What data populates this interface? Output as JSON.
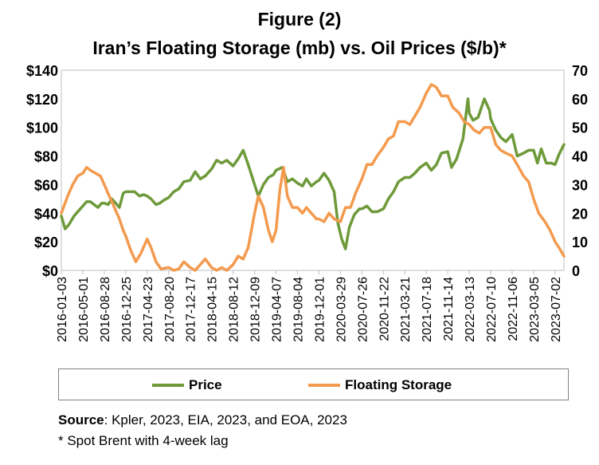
{
  "title_line1": "Figure (2)",
  "title_line2": "Iran’s Floating Storage (mb) vs. Oil Prices ($/b)*",
  "source_label": "Source",
  "source_text": ": Kpler, 2023, EIA, 2023, and EOA, 2023",
  "note": "* Spot Brent with 4-week lag",
  "chart_data": {
    "type": "line",
    "grid": false,
    "legend_position": "bottom",
    "y_left": {
      "ticks": [
        "$0",
        "$20",
        "$40",
        "$60",
        "$80",
        "$100",
        "$120",
        "$140"
      ],
      "range": [
        0,
        140
      ]
    },
    "y_right": {
      "ticks": [
        "0",
        "10",
        "20",
        "30",
        "40",
        "50",
        "60",
        "70"
      ],
      "range": [
        0,
        70
      ]
    },
    "x_ticks": [
      "2016-01-03",
      "2016-05-01",
      "2016-08-28",
      "2016-12-25",
      "2017-04-23",
      "2017-08-20",
      "2017-12-17",
      "2018-04-15",
      "2018-08-12",
      "2018-12-09",
      "2019-04-07",
      "2019-08-04",
      "2019-12-01",
      "2020-03-29",
      "2020-07-26",
      "2020-11-22",
      "2021-03-21",
      "2021-07-18",
      "2021-11-14",
      "2022-03-13",
      "2022-07-10",
      "2022-11-06",
      "2023-03-05",
      "2023-07-02"
    ],
    "x_range": [
      "2016-01-03",
      "2023-08-20"
    ],
    "series": [
      {
        "name": "Price",
        "axis": "left",
        "color": "#6e9a3a",
        "points": [
          [
            "2016-01-03",
            38
          ],
          [
            "2016-01-24",
            29
          ],
          [
            "2016-02-14",
            32
          ],
          [
            "2016-03-13",
            38
          ],
          [
            "2016-04-10",
            42
          ],
          [
            "2016-05-01",
            45
          ],
          [
            "2016-05-22",
            48
          ],
          [
            "2016-06-12",
            48
          ],
          [
            "2016-07-03",
            46
          ],
          [
            "2016-07-24",
            44
          ],
          [
            "2016-08-14",
            47
          ],
          [
            "2016-08-28",
            47
          ],
          [
            "2016-09-18",
            46
          ],
          [
            "2016-10-09",
            50
          ],
          [
            "2016-10-30",
            47
          ],
          [
            "2016-11-20",
            44
          ],
          [
            "2016-12-11",
            54
          ],
          [
            "2016-12-25",
            55
          ],
          [
            "2017-01-15",
            55
          ],
          [
            "2017-02-12",
            55
          ],
          [
            "2017-03-12",
            52
          ],
          [
            "2017-04-02",
            53
          ],
          [
            "2017-04-23",
            52
          ],
          [
            "2017-05-14",
            50
          ],
          [
            "2017-06-11",
            46
          ],
          [
            "2017-07-02",
            47
          ],
          [
            "2017-07-23",
            49
          ],
          [
            "2017-08-20",
            51
          ],
          [
            "2017-09-17",
            55
          ],
          [
            "2017-10-15",
            57
          ],
          [
            "2017-11-12",
            62
          ],
          [
            "2017-12-17",
            63
          ],
          [
            "2018-01-14",
            69
          ],
          [
            "2018-02-11",
            64
          ],
          [
            "2018-03-11",
            66
          ],
          [
            "2018-04-15",
            71
          ],
          [
            "2018-05-13",
            77
          ],
          [
            "2018-06-10",
            75
          ],
          [
            "2018-07-08",
            77
          ],
          [
            "2018-08-12",
            73
          ],
          [
            "2018-09-09",
            78
          ],
          [
            "2018-10-07",
            84
          ],
          [
            "2018-11-04",
            74
          ],
          [
            "2018-12-09",
            60
          ],
          [
            "2018-12-30",
            52
          ],
          [
            "2019-01-27",
            60
          ],
          [
            "2019-02-24",
            65
          ],
          [
            "2019-03-24",
            67
          ],
          [
            "2019-04-07",
            70
          ],
          [
            "2019-05-12",
            72
          ],
          [
            "2019-06-09",
            62
          ],
          [
            "2019-07-07",
            64
          ],
          [
            "2019-08-04",
            61
          ],
          [
            "2019-09-01",
            59
          ],
          [
            "2019-09-22",
            64
          ],
          [
            "2019-10-20",
            59
          ],
          [
            "2019-11-17",
            62
          ],
          [
            "2019-12-01",
            63
          ],
          [
            "2019-12-29",
            68
          ],
          [
            "2020-01-26",
            63
          ],
          [
            "2020-02-23",
            55
          ],
          [
            "2020-03-15",
            33
          ],
          [
            "2020-04-05",
            22
          ],
          [
            "2020-04-26",
            15
          ],
          [
            "2020-05-17",
            30
          ],
          [
            "2020-06-14",
            39
          ],
          [
            "2020-07-12",
            43
          ],
          [
            "2020-07-26",
            43
          ],
          [
            "2020-08-23",
            45
          ],
          [
            "2020-09-20",
            41
          ],
          [
            "2020-10-18",
            41
          ],
          [
            "2020-11-22",
            43
          ],
          [
            "2020-12-20",
            50
          ],
          [
            "2021-01-17",
            55
          ],
          [
            "2021-02-14",
            62
          ],
          [
            "2021-03-21",
            65
          ],
          [
            "2021-04-18",
            65
          ],
          [
            "2021-05-16",
            68
          ],
          [
            "2021-06-13",
            72
          ],
          [
            "2021-07-18",
            75
          ],
          [
            "2021-08-15",
            70
          ],
          [
            "2021-09-12",
            74
          ],
          [
            "2021-10-10",
            82
          ],
          [
            "2021-11-14",
            83
          ],
          [
            "2021-12-05",
            72
          ],
          [
            "2022-01-02",
            78
          ],
          [
            "2022-02-06",
            92
          ],
          [
            "2022-03-06",
            120
          ],
          [
            "2022-03-13",
            110
          ],
          [
            "2022-04-03",
            105
          ],
          [
            "2022-05-01",
            107
          ],
          [
            "2022-06-05",
            120
          ],
          [
            "2022-07-03",
            112
          ],
          [
            "2022-07-10",
            106
          ],
          [
            "2022-08-07",
            98
          ],
          [
            "2022-09-04",
            93
          ],
          [
            "2022-10-02",
            90
          ],
          [
            "2022-11-06",
            95
          ],
          [
            "2022-12-04",
            80
          ],
          [
            "2023-01-08",
            82
          ],
          [
            "2023-02-05",
            84
          ],
          [
            "2023-03-05",
            84
          ],
          [
            "2023-03-26",
            75
          ],
          [
            "2023-04-16",
            85
          ],
          [
            "2023-05-14",
            75
          ],
          [
            "2023-06-11",
            75
          ],
          [
            "2023-07-02",
            74
          ],
          [
            "2023-07-23",
            81
          ],
          [
            "2023-08-20",
            88
          ]
        ]
      },
      {
        "name": "Floating Storage",
        "axis": "right",
        "color": "#f39a4e",
        "points": [
          [
            "2016-01-03",
            20
          ],
          [
            "2016-02-07",
            26
          ],
          [
            "2016-03-06",
            30
          ],
          [
            "2016-04-03",
            33
          ],
          [
            "2016-05-01",
            34
          ],
          [
            "2016-05-22",
            36
          ],
          [
            "2016-06-12",
            35
          ],
          [
            "2016-07-10",
            34
          ],
          [
            "2016-08-07",
            33
          ],
          [
            "2016-08-28",
            30
          ],
          [
            "2016-09-25",
            26
          ],
          [
            "2016-10-23",
            22
          ],
          [
            "2016-11-20",
            18
          ],
          [
            "2016-12-11",
            14
          ],
          [
            "2016-12-25",
            12
          ],
          [
            "2017-01-22",
            7
          ],
          [
            "2017-02-19",
            3
          ],
          [
            "2017-03-19",
            6
          ],
          [
            "2017-04-23",
            11
          ],
          [
            "2017-05-14",
            8
          ],
          [
            "2017-06-11",
            3
          ],
          [
            "2017-07-09",
            0.5
          ],
          [
            "2017-08-20",
            1
          ],
          [
            "2017-09-17",
            0
          ],
          [
            "2017-10-15",
            0.5
          ],
          [
            "2017-11-12",
            3
          ],
          [
            "2017-12-17",
            1
          ],
          [
            "2018-01-14",
            0
          ],
          [
            "2018-02-11",
            2
          ],
          [
            "2018-03-11",
            4
          ],
          [
            "2018-04-15",
            1
          ],
          [
            "2018-05-13",
            0
          ],
          [
            "2018-06-10",
            1
          ],
          [
            "2018-07-08",
            0
          ],
          [
            "2018-08-12",
            2
          ],
          [
            "2018-09-09",
            5
          ],
          [
            "2018-10-07",
            4
          ],
          [
            "2018-11-04",
            8
          ],
          [
            "2018-12-09",
            20
          ],
          [
            "2018-12-30",
            26
          ],
          [
            "2019-01-27",
            22
          ],
          [
            "2019-02-24",
            14
          ],
          [
            "2019-03-17",
            10
          ],
          [
            "2019-04-07",
            14
          ],
          [
            "2019-04-28",
            28
          ],
          [
            "2019-05-19",
            36
          ],
          [
            "2019-06-09",
            26
          ],
          [
            "2019-07-07",
            22
          ],
          [
            "2019-08-04",
            22
          ],
          [
            "2019-09-01",
            20
          ],
          [
            "2019-09-22",
            22
          ],
          [
            "2019-10-20",
            20
          ],
          [
            "2019-11-17",
            18
          ],
          [
            "2019-12-01",
            18
          ],
          [
            "2019-12-29",
            17
          ],
          [
            "2020-01-26",
            20
          ],
          [
            "2020-02-23",
            18
          ],
          [
            "2020-03-29",
            17
          ],
          [
            "2020-04-26",
            22
          ],
          [
            "2020-05-24",
            22
          ],
          [
            "2020-06-21",
            27
          ],
          [
            "2020-07-26",
            32
          ],
          [
            "2020-08-23",
            37
          ],
          [
            "2020-09-20",
            37
          ],
          [
            "2020-10-18",
            40
          ],
          [
            "2020-11-22",
            43
          ],
          [
            "2020-12-20",
            46
          ],
          [
            "2021-01-17",
            47
          ],
          [
            "2021-02-14",
            52
          ],
          [
            "2021-03-21",
            52
          ],
          [
            "2021-04-18",
            51
          ],
          [
            "2021-05-16",
            54
          ],
          [
            "2021-06-13",
            57
          ],
          [
            "2021-07-18",
            62
          ],
          [
            "2021-08-15",
            65
          ],
          [
            "2021-09-12",
            64
          ],
          [
            "2021-10-10",
            61
          ],
          [
            "2021-11-14",
            61
          ],
          [
            "2021-12-12",
            57
          ],
          [
            "2022-01-16",
            55
          ],
          [
            "2022-02-13",
            52
          ],
          [
            "2022-03-13",
            51
          ],
          [
            "2022-04-10",
            49
          ],
          [
            "2022-05-08",
            48
          ],
          [
            "2022-06-05",
            50
          ],
          [
            "2022-07-10",
            50
          ],
          [
            "2022-08-07",
            44
          ],
          [
            "2022-09-04",
            42
          ],
          [
            "2022-10-02",
            41
          ],
          [
            "2022-11-06",
            40
          ],
          [
            "2022-12-04",
            37
          ],
          [
            "2023-01-08",
            33
          ],
          [
            "2023-02-05",
            31
          ],
          [
            "2023-03-05",
            25
          ],
          [
            "2023-04-02",
            20
          ],
          [
            "2023-05-07",
            17
          ],
          [
            "2023-06-04",
            14
          ],
          [
            "2023-07-02",
            10
          ],
          [
            "2023-07-23",
            8
          ],
          [
            "2023-08-20",
            5
          ]
        ]
      }
    ]
  }
}
